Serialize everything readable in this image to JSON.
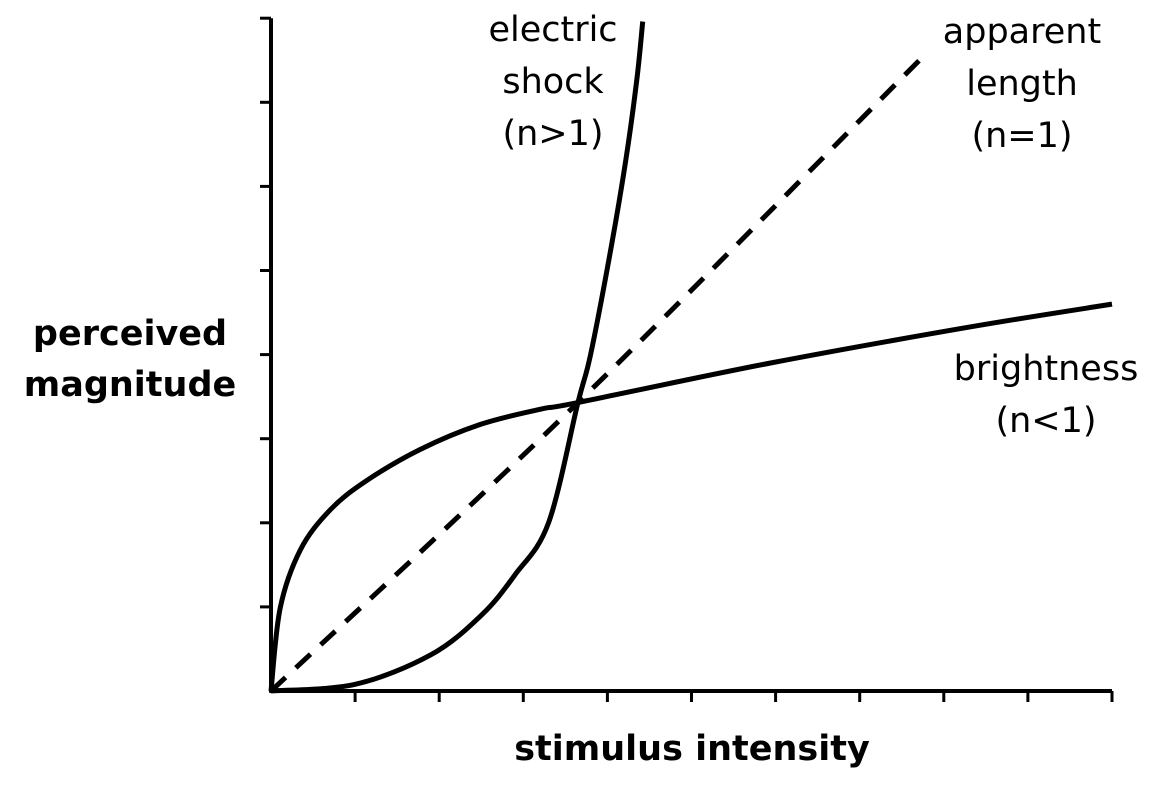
{
  "chart_data": {
    "type": "line",
    "title": "",
    "xlabel": "stimulus intensity",
    "ylabel": [
      "perceived",
      "magnitude"
    ],
    "xlim": [
      0,
      10
    ],
    "ylim": [
      0,
      8
    ],
    "x_ticks": [
      1,
      2,
      3,
      4,
      5,
      6,
      7,
      8,
      9,
      10
    ],
    "y_ticks": [
      1,
      2,
      3,
      4,
      5,
      6,
      7,
      8
    ],
    "tick_labels_shown": false,
    "grid": false,
    "legend": "inline labels",
    "colors": {
      "line": "#000000",
      "background": "#ffffff"
    },
    "series": [
      {
        "name": "electric shock",
        "label_lines": [
          "electric",
          "shock",
          "(n>1)"
        ],
        "exponent": "n>1",
        "style": "solid",
        "points": [
          [
            0,
            0
          ],
          [
            1.0,
            0.08
          ],
          [
            1.9,
            0.43
          ],
          [
            2.5,
            0.9
          ],
          [
            2.9,
            1.38
          ],
          [
            3.3,
            2.0
          ],
          [
            3.65,
            3.43
          ],
          [
            3.8,
            4.0
          ],
          [
            4.04,
            5.25
          ],
          [
            4.22,
            6.32
          ],
          [
            4.35,
            7.27
          ],
          [
            4.42,
            7.96
          ]
        ]
      },
      {
        "name": "apparent length",
        "label_lines": [
          "apparent",
          "length",
          "(n=1)"
        ],
        "exponent": "n=1",
        "style": "dashed",
        "points": [
          [
            0,
            0
          ],
          [
            3.65,
            3.43
          ],
          [
            7.76,
            7.55
          ]
        ]
      },
      {
        "name": "brightness",
        "label_lines": [
          "brightness",
          "(n<1)"
        ],
        "exponent": "n<1",
        "style": "solid",
        "points": [
          [
            0,
            0
          ],
          [
            0.11,
            0.99
          ],
          [
            0.35,
            1.68
          ],
          [
            0.7,
            2.15
          ],
          [
            1.12,
            2.49
          ],
          [
            1.77,
            2.87
          ],
          [
            2.49,
            3.17
          ],
          [
            3.2,
            3.35
          ],
          [
            3.65,
            3.43
          ],
          [
            5.94,
            3.9
          ],
          [
            8.32,
            4.33
          ],
          [
            10.0,
            4.6
          ]
        ]
      }
    ]
  }
}
